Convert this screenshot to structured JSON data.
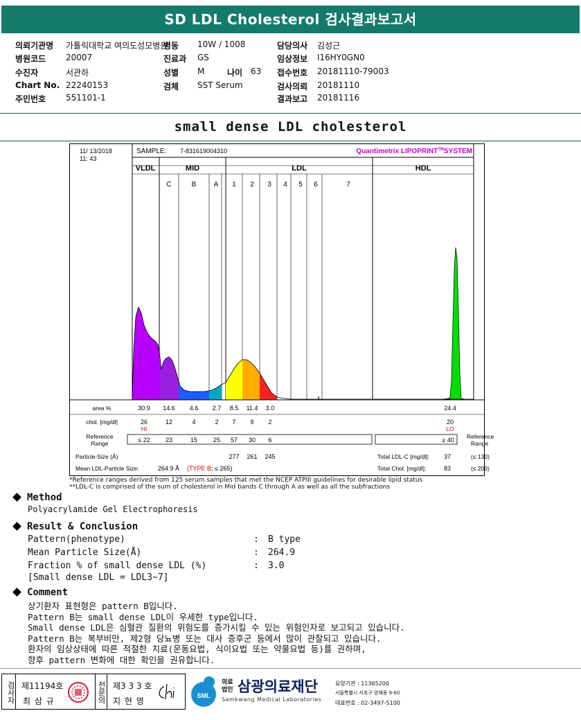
{
  "report_title": "SD LDL Cholesterol 검사결과보고서",
  "header": {
    "rows": [
      [
        {
          "label": "의뢰기관명",
          "value": "가톨릭대학교 여의도성모병원"
        },
        {
          "label": "병동",
          "value": "10W / 1008"
        },
        {
          "label": "담당의사",
          "value": "김성근"
        }
      ],
      [
        {
          "label": "병원코드",
          "value": "20007"
        },
        {
          "label": "진료과",
          "value": "GS"
        },
        {
          "label": "임상정보",
          "value": "I16HY0GN0"
        }
      ],
      [
        {
          "label": "수진자",
          "value": "서관하"
        },
        {
          "label": "성별",
          "value": "M"
        },
        {
          "label": "접수번호",
          "value": "20181110-79003"
        }
      ],
      [
        {
          "label": "Chart No.",
          "value": "22240153"
        },
        {
          "label": "검체",
          "value": "SST Serum"
        },
        {
          "label": "검사의뢰",
          "value": "20181110"
        }
      ],
      [
        {
          "label": "주민번호",
          "value": "551101-1"
        },
        {
          "label": "",
          "value": ""
        },
        {
          "label": "결과보고",
          "value": "20181116"
        }
      ]
    ],
    "age_label": "나이",
    "age_value": "63"
  },
  "chart_title": "small dense LDL cholesterol",
  "chart": {
    "date": "11/ 13/2018",
    "time": "11: 43",
    "sample_label": "SAMPLE:",
    "sample_id": "7-831619004310",
    "brand": "Quantimetrix LIPOPRINT",
    "brand_tm": "TM",
    "brand_suffix": "SYSTEM",
    "groups": [
      "VLDL",
      "MID",
      "LDL",
      "HDL"
    ],
    "mid_bands": [
      "C",
      "B",
      "A"
    ],
    "ldl_bands": [
      "1",
      "2",
      "3",
      "4",
      "5",
      "6",
      "7"
    ],
    "area_label": "area %",
    "area_values": [
      "30.9",
      "14.6",
      "4.6",
      "2.7",
      "8.5",
      "11.4",
      "3.0"
    ],
    "area_hdl": "24.4",
    "chol_label": "chol. [mg/dl]",
    "chol_values": [
      "26",
      "12",
      "4",
      "2",
      "7",
      "9",
      "2"
    ],
    "chol_hdl": "20",
    "hi_flag": "HI",
    "lo_flag": "LO",
    "ref_label_1": "Reference",
    "ref_label_2": "Range",
    "ref_values": [
      "≤ 22",
      "23",
      "15",
      "25",
      "57",
      "30",
      "6"
    ],
    "ref_hdl": "≥ 40",
    "particle_label": "Particle-Size (Å)",
    "particle_values": [
      "277",
      "261",
      "245"
    ],
    "mean_label": "Mean LDL-Particle Size:",
    "mean_value": "264.9 Å",
    "mean_type": "(TYPE B",
    "mean_ref": "; ≤ 265)",
    "total_ldl_label": "Total LDL-C [mg/dl]:",
    "total_ldl_value": "37",
    "total_ldl_ref": "(≤ 130)",
    "total_chol_label": "Total Chol. [mg/dl]:",
    "total_chol_value": "83",
    "total_chol_ref": "(≤ 200)",
    "footnote_1": "*Reference ranges derived from 125 serum samples that met the NCEP ATPIII guidelines for desirable lipid status",
    "footnote_2": "**LDL-C is comprised of the sum of cholesterol in Mid bands C through A as well as all the subfractions"
  },
  "method": {
    "heading": "Method",
    "text": "Polyacrylamide Gel Electrophoresis"
  },
  "result": {
    "heading": "Result & Conclusion",
    "rows": [
      {
        "label": "Pattern(phenotype)",
        "sep": ":",
        "value": "B type"
      },
      {
        "label": "Mean Particle Size(Å)",
        "sep": ":",
        "value": "264.9"
      },
      {
        "label": "Fraction % of small dense LDL (%)",
        "sep": ":",
        "value": "3.0"
      }
    ],
    "note": "[Small dense LDL = LDL3~7]"
  },
  "comment": {
    "heading": "Comment",
    "lines": [
      "상기환자 표현형은 pattern B입니다.",
      "Pattern B는 small dense LDL이 우세한 type입니다.",
      "Small dense LDL은 심혈관 질환의 위험도를 증가시킬 수 있는 위험인자로 보고되고 있습니다.",
      "Pattern B는 복부비만, 제2형 당뇨병 또는 대사 증후군 등에서 많이 관찰되고 있습니다.",
      "환자의 임상상태에 따른 적절한 치료(운동요법, 식이요법 또는 약물요법 등)를 권하며,",
      "향후 pattern 변화에 대한 확인을 권유합니다."
    ]
  },
  "footer": {
    "tester_label": "검사자",
    "tester_no": "제11194호",
    "tester_name": "최 삼 규",
    "specialist_label": "전문의",
    "specialist_no": "제3 3 3 호",
    "specialist_name": "지 현 영",
    "signature_text": "Chi",
    "org_prefix_1": "의료",
    "org_prefix_2": "법인",
    "org_name": "삼광의료재단",
    "org_en": "Samkwang Medical Laboratories",
    "logo_text": "SML",
    "code_line": "요양기관 : 11365200",
    "address": "서울특별시 서초구 양재동 9-60",
    "phone": "대표번호 : 02-3497-5100"
  },
  "colors": {
    "title_bg": "#147a6a",
    "vldl": "#b800ff",
    "mid_c": "#9a1fe0",
    "mid_b": "#1e5cff",
    "mid_a": "#00a8c8",
    "ldl1": "#ffff00",
    "ldl2": "#ffae00",
    "ldl3": "#ff2020",
    "hdl": "#00e000",
    "brand": "#cc00cc",
    "flag": "#e00000"
  }
}
